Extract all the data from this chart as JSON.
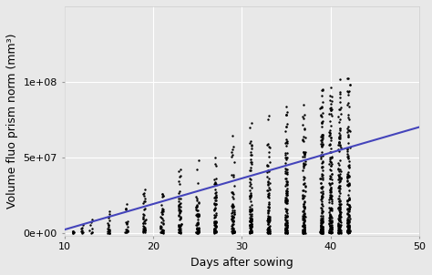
{
  "title": "",
  "xlabel": "Days after sowing",
  "ylabel": "Volume fluo prism norm (mm³)",
  "xlim": [
    10,
    50
  ],
  "ylim": [
    -2000000.0,
    150000000.0
  ],
  "background_color": "#e8e8e8",
  "grid_color": "#ffffff",
  "point_color": "black",
  "line_color": "#4444bb",
  "yticks": [
    0,
    50000000.0,
    100000000.0
  ],
  "ytick_labels": [
    "0e+00",
    "5e+07",
    "1e+08"
  ],
  "xticks": [
    10,
    20,
    30,
    40,
    50
  ],
  "day_groups": [
    11,
    12,
    13,
    15,
    17,
    19,
    21,
    23,
    25,
    27,
    29,
    31,
    33,
    35,
    37,
    39,
    40,
    41,
    42
  ],
  "line_slope": 1700000,
  "line_intercept": -15000000,
  "point_size": 3
}
